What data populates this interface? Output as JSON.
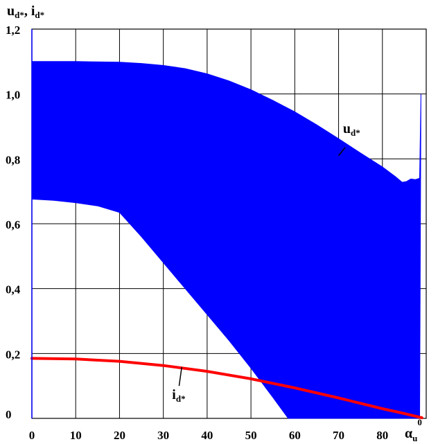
{
  "chart_data": {
    "type": "area",
    "ylabel": {
      "main": "u",
      "sub1": "d*",
      "sep": ", ",
      "main2": "i",
      "sub2": "d*"
    },
    "xlabel": {
      "main": "α",
      "sub": "u",
      "sup": "0"
    },
    "xlim": [
      0,
      90
    ],
    "ylim": [
      0,
      1.2
    ],
    "grid": true,
    "xticks": [
      {
        "value": 0,
        "label": "0"
      },
      {
        "value": 10,
        "label": "10"
      },
      {
        "value": 20,
        "label": "20"
      },
      {
        "value": 30,
        "label": "30"
      },
      {
        "value": 40,
        "label": "40"
      },
      {
        "value": 50,
        "label": "50"
      },
      {
        "value": 60,
        "label": "60"
      },
      {
        "value": 70,
        "label": "70"
      },
      {
        "value": 80,
        "label": "80"
      }
    ],
    "yticks": [
      {
        "value": 0,
        "label": "0"
      },
      {
        "value": 0.2,
        "label": "0,2"
      },
      {
        "value": 0.4,
        "label": "0,4"
      },
      {
        "value": 0.6,
        "label": "0,6"
      },
      {
        "value": 0.8,
        "label": "0,8"
      },
      {
        "value": 1.0,
        "label": "1,0"
      },
      {
        "value": 1.2,
        "label": "1,2"
      }
    ],
    "series": [
      {
        "name": "u_d*",
        "kind": "band",
        "color": "#0000ff",
        "upper": {
          "x": [
            0,
            10,
            20,
            25,
            30,
            35,
            40,
            45,
            50,
            55,
            60,
            65,
            70,
            75,
            80,
            83,
            84.5,
            85.5,
            86.5,
            87.5,
            88.5,
            88.8
          ],
          "y": [
            1.1,
            1.1,
            1.098,
            1.094,
            1.088,
            1.078,
            1.062,
            1.04,
            1.013,
            0.98,
            0.945,
            0.905,
            0.862,
            0.818,
            0.775,
            0.745,
            0.728,
            0.73,
            0.738,
            0.736,
            0.74,
            1.0
          ]
        },
        "lower": {
          "x": [
            0,
            5,
            10,
            15,
            20,
            25,
            30,
            35,
            40,
            45,
            50,
            55,
            58.5,
            59,
            88.5
          ],
          "y": [
            0.676,
            0.672,
            0.665,
            0.655,
            0.635,
            0.56,
            0.48,
            0.4,
            0.32,
            0.24,
            0.155,
            0.065,
            0,
            0,
            0
          ]
        },
        "label": {
          "main": "u",
          "sub": "d*",
          "x": 71,
          "y": 0.88
        }
      },
      {
        "name": "i_d*",
        "kind": "line",
        "color": "#ff0000",
        "x": [
          0,
          10,
          20,
          30,
          40,
          50,
          60,
          70,
          80,
          85,
          89
        ],
        "y": [
          0.185,
          0.183,
          0.176,
          0.163,
          0.145,
          0.122,
          0.094,
          0.063,
          0.03,
          0.015,
          0.002
        ],
        "label": {
          "main": "i",
          "sub": "d*",
          "x": 32,
          "y": 0.06
        }
      }
    ],
    "annotations": [
      {
        "target": "u_d*",
        "from": [
          71.5,
          0.835
        ],
        "to": [
          70,
          0.81
        ]
      },
      {
        "target": "i_d*",
        "from": [
          33.6,
          0.1
        ],
        "to": [
          34.2,
          0.158
        ]
      }
    ]
  }
}
